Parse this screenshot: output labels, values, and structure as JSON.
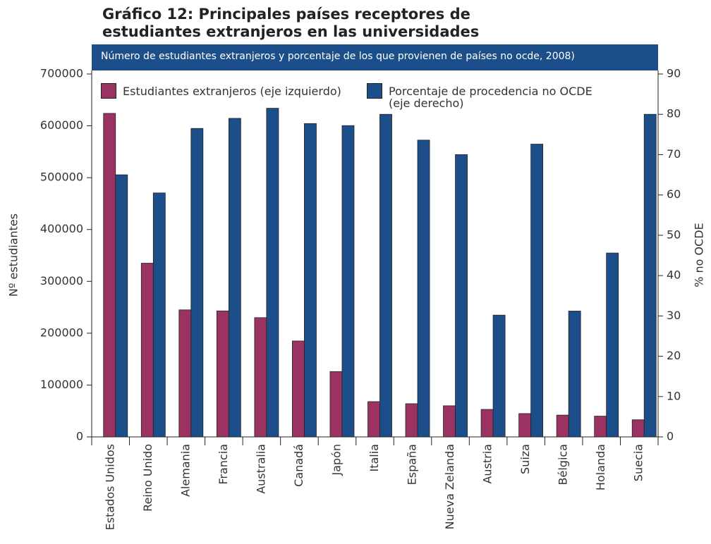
{
  "chart_data": {
    "type": "bar",
    "title": "Gráfico 12: Principales países receptores de\nestudiantes extranjeros en las universidades",
    "subtitle": "Número de estudiantes extranjeros y porcentaje de los que provienen de países no ocde, 2008)",
    "ylabel": "Nº estudiantes",
    "y2label": "% no OCDE",
    "categories": [
      "Estados Unidos",
      "Reino Unido",
      "Alemania",
      "Francia",
      "Australia",
      "Canadá",
      "Japón",
      "Italia",
      "España",
      "Nueva Zelanda",
      "Austria",
      "Suiza",
      "Bélgica",
      "Holanda",
      "Suecia"
    ],
    "series": [
      {
        "name": "Estudiantes extranjeros (eje izquierdo)",
        "color": "#9b3362",
        "axis": "y",
        "values": [
          624000,
          335000,
          245000,
          243000,
          230000,
          185000,
          126000,
          68000,
          64000,
          60000,
          53000,
          45000,
          42000,
          40000,
          33000
        ]
      },
      {
        "name": "Porcentaje de procedencia no OCDE\n(eje derecho)",
        "color": "#1c4f8a",
        "axis": "y2",
        "values": [
          65,
          60.5,
          76.5,
          79,
          81.5,
          77.7,
          77.2,
          80,
          73.6,
          70,
          30.2,
          72.6,
          31.2,
          45.6,
          80
        ]
      }
    ],
    "ylim": [
      0,
      700000
    ],
    "yticks": [
      0,
      100000,
      200000,
      300000,
      400000,
      500000,
      600000,
      700000
    ],
    "y2lim": [
      0,
      90
    ],
    "y2ticks": [
      0,
      10,
      20,
      30,
      40,
      50,
      60,
      70,
      80,
      90
    ],
    "grid": false
  }
}
